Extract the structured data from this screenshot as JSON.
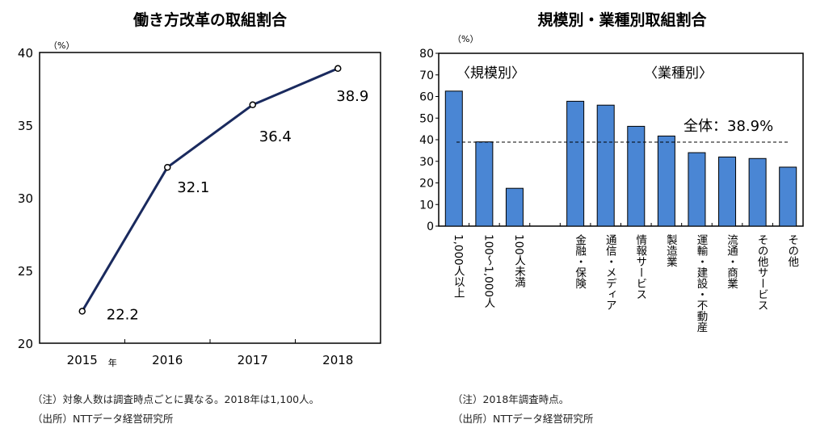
{
  "chart_data": [
    {
      "type": "line",
      "title": "働き方改革の取組割合",
      "ylabel": "（%）",
      "x_suffix": "年",
      "categories": [
        "2015",
        "2016",
        "2017",
        "2018"
      ],
      "values": [
        22.2,
        32.1,
        36.4,
        38.9
      ],
      "data_labels": [
        "22.2",
        "32.1",
        "36.4",
        "38.9"
      ],
      "ylim": [
        20,
        40
      ],
      "yticks": [
        20,
        25,
        30,
        35,
        40
      ],
      "line_color": "#1a2a5e",
      "grid": false,
      "notes": [
        "（注）対象人数は調査時点ごとに異なる。2018年は1,100人。",
        "（出所）NTTデータ経営研究所"
      ]
    },
    {
      "type": "bar",
      "title": "規模別・業種別取組割合",
      "ylabel": "（%）",
      "group_labels": [
        "〈規模別〉",
        "〈業種別〉"
      ],
      "categories": [
        "1,000人以上",
        "100～1,000人",
        "100人未満",
        "金融・保険",
        "通信・メディア",
        "情報サービス",
        "製造業",
        "運輸・建設・不動産",
        "流通・商業",
        "その他サービス",
        "その他"
      ],
      "values": [
        62.5,
        39,
        17.5,
        57.8,
        56,
        46.2,
        41.7,
        34,
        32,
        31.3,
        27.3
      ],
      "reference_line": {
        "value": 38.9,
        "label": "全体：38.9%"
      },
      "ylim": [
        0,
        80
      ],
      "yticks": [
        0,
        10,
        20,
        30,
        40,
        50,
        60,
        70,
        80
      ],
      "bar_color": "#4a86d4",
      "grid": false,
      "notes": [
        "（注）2018年調査時点。",
        "（出所）NTTデータ経営研究所"
      ]
    }
  ]
}
